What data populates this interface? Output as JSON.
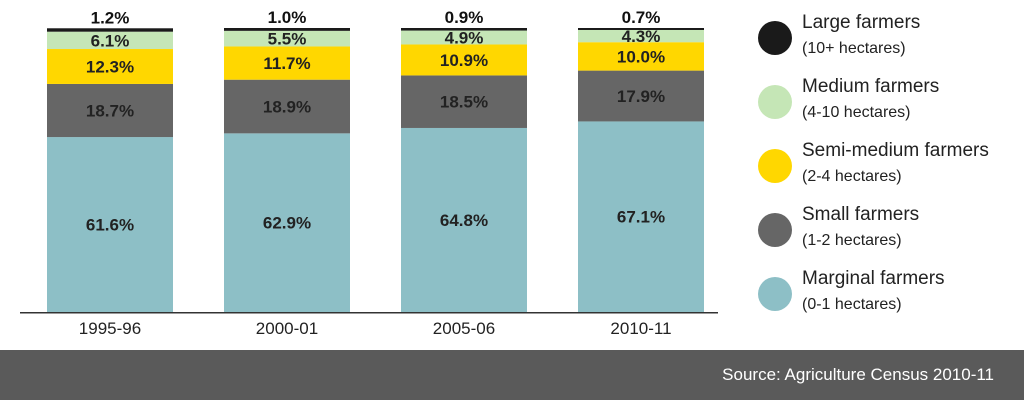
{
  "chart_data": {
    "type": "bar",
    "stacked": true,
    "categories": [
      "1995-96",
      "2000-01",
      "2005-06",
      "2010-11"
    ],
    "series": [
      {
        "name": "Marginal farmers",
        "range": "(0-1 hectares)",
        "color": "#8dbfc6",
        "values": [
          61.6,
          62.9,
          64.8,
          67.1
        ],
        "labels": [
          "61.6%",
          "62.9%",
          "64.8%",
          "67.1%"
        ]
      },
      {
        "name": "Small farmers",
        "range": "(1-2 hectares)",
        "color": "#666666",
        "values": [
          18.7,
          18.9,
          18.5,
          17.9
        ],
        "labels": [
          "18.7%",
          "18.9%",
          "18.5%",
          "17.9%"
        ]
      },
      {
        "name": "Semi-medium farmers",
        "range": "(2-4 hectares)",
        "color": "#ffd700",
        "values": [
          12.3,
          11.7,
          10.9,
          10.0
        ],
        "labels": [
          "12.3%",
          "11.7%",
          "10.9%",
          "10.0%"
        ]
      },
      {
        "name": "Medium farmers",
        "range": "(4-10 hectares)",
        "color": "#c5e6b6",
        "values": [
          6.1,
          5.5,
          4.9,
          4.3
        ],
        "labels": [
          "6.1%",
          "5.5%",
          "4.9%",
          "4.3%"
        ]
      },
      {
        "name": "Large farmers",
        "range": "(10+ hectares)",
        "color": "#1a1a1a",
        "values": [
          1.2,
          1.0,
          0.9,
          0.7
        ],
        "labels": [
          "1.2%",
          "1.0%",
          "0.9%",
          "0.7%"
        ]
      }
    ],
    "ylim": [
      0,
      100
    ],
    "grid": false,
    "legend": "right"
  },
  "source": "Source: Agriculture Census 2010-11"
}
